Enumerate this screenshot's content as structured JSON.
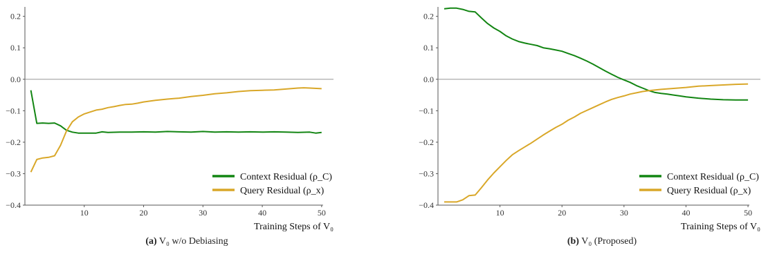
{
  "colors": {
    "context": "#128512",
    "query": "#d9a728",
    "axis": "#555555",
    "zero_line": "#888888"
  },
  "charts": [
    {
      "caption_id": "(a)",
      "caption_text": "V₀ w/o Debiasing",
      "chart_data": {
        "type": "line",
        "xlabel": "Training Steps of V₀",
        "xlim": [
          0,
          52
        ],
        "ylim": [
          -0.4,
          0.23
        ],
        "xticks": [
          "10",
          "20",
          "30",
          "40",
          "50"
        ],
        "yticks": [
          "0.2",
          "0.1",
          "0.0",
          "−0.1",
          "−0.2",
          "−0.3",
          "−0.4"
        ],
        "legend_position": "lower-right",
        "grid": false,
        "series": [
          {
            "name": "Context Residual (ρ_C)",
            "color": "#128512",
            "points": [
              [
                1,
                -0.035
              ],
              [
                2,
                -0.14
              ],
              [
                3,
                -0.139
              ],
              [
                4,
                -0.14
              ],
              [
                5,
                -0.139
              ],
              [
                6,
                -0.148
              ],
              [
                7,
                -0.162
              ],
              [
                8,
                -0.168
              ],
              [
                9,
                -0.171
              ],
              [
                10,
                -0.171
              ],
              [
                11,
                -0.171
              ],
              [
                12,
                -0.171
              ],
              [
                13,
                -0.167
              ],
              [
                14,
                -0.169
              ],
              [
                16,
                -0.168
              ],
              [
                18,
                -0.168
              ],
              [
                20,
                -0.167
              ],
              [
                22,
                -0.168
              ],
              [
                24,
                -0.166
              ],
              [
                26,
                -0.167
              ],
              [
                28,
                -0.168
              ],
              [
                30,
                -0.166
              ],
              [
                32,
                -0.168
              ],
              [
                34,
                -0.167
              ],
              [
                36,
                -0.168
              ],
              [
                38,
                -0.167
              ],
              [
                40,
                -0.168
              ],
              [
                42,
                -0.167
              ],
              [
                44,
                -0.168
              ],
              [
                46,
                -0.169
              ],
              [
                48,
                -0.168
              ],
              [
                49,
                -0.171
              ],
              [
                50,
                -0.169
              ]
            ]
          },
          {
            "name": "Query Residual (ρ_x)",
            "color": "#d9a728",
            "points": [
              [
                1,
                -0.295
              ],
              [
                2,
                -0.255
              ],
              [
                3,
                -0.25
              ],
              [
                4,
                -0.248
              ],
              [
                5,
                -0.243
              ],
              [
                6,
                -0.21
              ],
              [
                7,
                -0.165
              ],
              [
                8,
                -0.135
              ],
              [
                9,
                -0.12
              ],
              [
                10,
                -0.11
              ],
              [
                11,
                -0.104
              ],
              [
                12,
                -0.098
              ],
              [
                13,
                -0.095
              ],
              [
                14,
                -0.09
              ],
              [
                15,
                -0.087
              ],
              [
                16,
                -0.083
              ],
              [
                17,
                -0.08
              ],
              [
                18,
                -0.079
              ],
              [
                19,
                -0.076
              ],
              [
                20,
                -0.072
              ],
              [
                22,
                -0.067
              ],
              [
                24,
                -0.063
              ],
              [
                26,
                -0.06
              ],
              [
                28,
                -0.055
              ],
              [
                30,
                -0.051
              ],
              [
                32,
                -0.046
              ],
              [
                34,
                -0.043
              ],
              [
                36,
                -0.039
              ],
              [
                38,
                -0.036
              ],
              [
                40,
                -0.035
              ],
              [
                42,
                -0.034
              ],
              [
                44,
                -0.031
              ],
              [
                46,
                -0.028
              ],
              [
                47,
                -0.027
              ],
              [
                48,
                -0.028
              ],
              [
                50,
                -0.03
              ]
            ]
          }
        ]
      }
    },
    {
      "caption_id": "(b)",
      "caption_text": "V₀ (Proposed)",
      "chart_data": {
        "type": "line",
        "xlabel": "Training Steps of V₀",
        "xlim": [
          0,
          52
        ],
        "ylim": [
          -0.4,
          0.23
        ],
        "xticks": [
          "10",
          "20",
          "30",
          "40",
          "50"
        ],
        "yticks": [
          "0.2",
          "0.1",
          "0.0",
          "−0.1",
          "−0.2",
          "−0.3",
          "−0.4"
        ],
        "legend_position": "lower-right",
        "grid": false,
        "series": [
          {
            "name": "Context Residual (ρ_C)",
            "color": "#128512",
            "points": [
              [
                1,
                0.224
              ],
              [
                2,
                0.226
              ],
              [
                3,
                0.226
              ],
              [
                4,
                0.222
              ],
              [
                5,
                0.216
              ],
              [
                6,
                0.214
              ],
              [
                7,
                0.195
              ],
              [
                8,
                0.177
              ],
              [
                9,
                0.163
              ],
              [
                10,
                0.152
              ],
              [
                11,
                0.138
              ],
              [
                12,
                0.128
              ],
              [
                13,
                0.12
              ],
              [
                14,
                0.115
              ],
              [
                15,
                0.111
              ],
              [
                16,
                0.107
              ],
              [
                17,
                0.1
              ],
              [
                18,
                0.097
              ],
              [
                19,
                0.093
              ],
              [
                20,
                0.089
              ],
              [
                21,
                0.082
              ],
              [
                22,
                0.075
              ],
              [
                23,
                0.067
              ],
              [
                24,
                0.058
              ],
              [
                25,
                0.048
              ],
              [
                26,
                0.037
              ],
              [
                27,
                0.026
              ],
              [
                28,
                0.016
              ],
              [
                29,
                0.006
              ],
              [
                30,
                -0.002
              ],
              [
                31,
                -0.01
              ],
              [
                32,
                -0.02
              ],
              [
                33,
                -0.028
              ],
              [
                34,
                -0.036
              ],
              [
                35,
                -0.042
              ],
              [
                36,
                -0.045
              ],
              [
                37,
                -0.047
              ],
              [
                38,
                -0.05
              ],
              [
                39,
                -0.053
              ],
              [
                40,
                -0.056
              ],
              [
                42,
                -0.06
              ],
              [
                44,
                -0.063
              ],
              [
                46,
                -0.065
              ],
              [
                48,
                -0.066
              ],
              [
                50,
                -0.066
              ]
            ]
          },
          {
            "name": "Query Residual (ρ_x)",
            "color": "#d9a728",
            "points": [
              [
                1,
                -0.39
              ],
              [
                2,
                -0.39
              ],
              [
                3,
                -0.39
              ],
              [
                4,
                -0.383
              ],
              [
                5,
                -0.37
              ],
              [
                6,
                -0.368
              ],
              [
                7,
                -0.345
              ],
              [
                8,
                -0.32
              ],
              [
                9,
                -0.298
              ],
              [
                10,
                -0.278
              ],
              [
                11,
                -0.258
              ],
              [
                12,
                -0.24
              ],
              [
                13,
                -0.227
              ],
              [
                14,
                -0.215
              ],
              [
                15,
                -0.203
              ],
              [
                16,
                -0.19
              ],
              [
                17,
                -0.177
              ],
              [
                18,
                -0.165
              ],
              [
                19,
                -0.153
              ],
              [
                20,
                -0.143
              ],
              [
                21,
                -0.13
              ],
              [
                22,
                -0.12
              ],
              [
                23,
                -0.108
              ],
              [
                24,
                -0.099
              ],
              [
                25,
                -0.09
              ],
              [
                26,
                -0.081
              ],
              [
                27,
                -0.072
              ],
              [
                28,
                -0.064
              ],
              [
                29,
                -0.058
              ],
              [
                30,
                -0.053
              ],
              [
                31,
                -0.047
              ],
              [
                32,
                -0.043
              ],
              [
                33,
                -0.039
              ],
              [
                34,
                -0.036
              ],
              [
                36,
                -0.032
              ],
              [
                38,
                -0.029
              ],
              [
                40,
                -0.026
              ],
              [
                42,
                -0.022
              ],
              [
                44,
                -0.02
              ],
              [
                46,
                -0.018
              ],
              [
                48,
                -0.016
              ],
              [
                50,
                -0.015
              ]
            ]
          }
        ]
      }
    }
  ]
}
